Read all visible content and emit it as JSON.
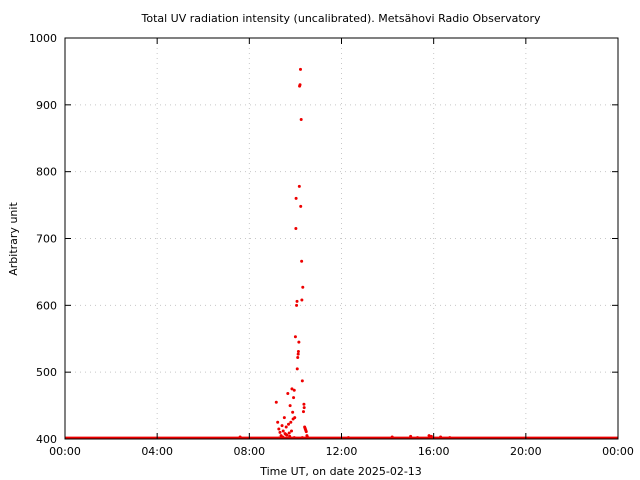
{
  "chart_data": {
    "type": "scatter",
    "title": "Total UV radiation intensity (uncalibrated). Metsähovi Radio Observatory",
    "xlabel": "Time UT, on date 2025-02-13",
    "ylabel": "Arbitrary unit",
    "xlim": [
      0,
      24
    ],
    "ylim": [
      400,
      1000
    ],
    "x_ticks": [
      {
        "value": 0,
        "label": "00:00"
      },
      {
        "value": 4,
        "label": "04:00"
      },
      {
        "value": 8,
        "label": "08:00"
      },
      {
        "value": 12,
        "label": "12:00"
      },
      {
        "value": 16,
        "label": "16:00"
      },
      {
        "value": 20,
        "label": "20:00"
      },
      {
        "value": 24,
        "label": "00:00"
      }
    ],
    "y_ticks": [
      {
        "value": 400,
        "label": "400"
      },
      {
        "value": 500,
        "label": "500"
      },
      {
        "value": 600,
        "label": "600"
      },
      {
        "value": 700,
        "label": "700"
      },
      {
        "value": 800,
        "label": "800"
      },
      {
        "value": 900,
        "label": "900"
      },
      {
        "value": 1000,
        "label": "1000"
      }
    ],
    "grid": true,
    "baseline": {
      "x_start": 0,
      "x_end": 24,
      "y": 402
    },
    "color": "#ee0000",
    "points": [
      [
        9.17,
        455
      ],
      [
        9.23,
        425
      ],
      [
        9.28,
        415
      ],
      [
        9.33,
        410
      ],
      [
        9.38,
        405
      ],
      [
        9.42,
        420
      ],
      [
        9.47,
        412
      ],
      [
        9.52,
        432
      ],
      [
        9.55,
        408
      ],
      [
        9.6,
        418
      ],
      [
        9.63,
        406
      ],
      [
        9.67,
        468
      ],
      [
        9.7,
        422
      ],
      [
        9.73,
        409
      ],
      [
        9.77,
        450
      ],
      [
        9.8,
        425
      ],
      [
        9.83,
        412
      ],
      [
        9.85,
        475
      ],
      [
        9.88,
        440
      ],
      [
        9.9,
        430
      ],
      [
        9.92,
        462
      ],
      [
        9.95,
        473
      ],
      [
        9.97,
        432
      ],
      [
        10.0,
        553
      ],
      [
        10.02,
        715
      ],
      [
        10.03,
        760
      ],
      [
        10.05,
        600
      ],
      [
        10.07,
        606
      ],
      [
        10.08,
        505
      ],
      [
        10.1,
        522
      ],
      [
        10.12,
        527
      ],
      [
        10.13,
        531
      ],
      [
        10.15,
        545
      ],
      [
        10.17,
        778
      ],
      [
        10.18,
        928
      ],
      [
        10.2,
        930
      ],
      [
        10.22,
        953
      ],
      [
        10.23,
        748
      ],
      [
        10.25,
        878
      ],
      [
        10.27,
        666
      ],
      [
        10.28,
        608
      ],
      [
        10.3,
        487
      ],
      [
        10.32,
        627
      ],
      [
        10.35,
        441
      ],
      [
        10.37,
        452
      ],
      [
        10.38,
        447
      ],
      [
        10.4,
        418
      ],
      [
        10.42,
        416
      ],
      [
        10.43,
        415
      ],
      [
        10.45,
        413
      ],
      [
        10.47,
        411
      ],
      [
        10.5,
        405
      ],
      [
        10.52,
        403
      ],
      [
        9.3,
        400
      ],
      [
        9.45,
        403
      ],
      [
        9.58,
        407
      ],
      [
        9.75,
        404
      ],
      [
        9.95,
        402
      ],
      [
        10.3,
        402
      ],
      [
        7.6,
        403
      ],
      [
        12.3,
        402
      ],
      [
        14.2,
        403
      ],
      [
        15.0,
        404
      ],
      [
        15.3,
        402
      ],
      [
        15.8,
        405
      ],
      [
        15.9,
        404
      ],
      [
        16.3,
        403
      ],
      [
        16.7,
        402
      ]
    ]
  }
}
